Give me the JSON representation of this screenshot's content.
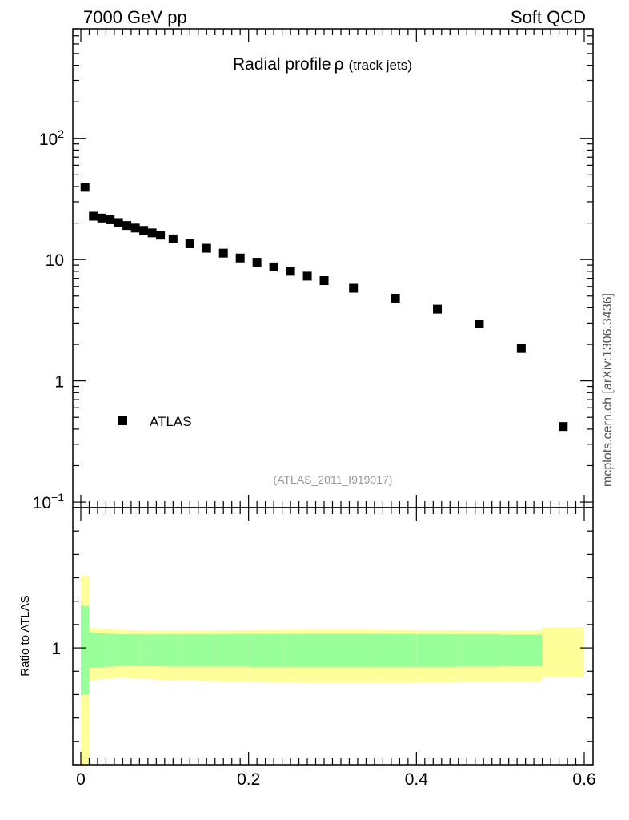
{
  "header": {
    "left": "7000 GeV pp",
    "right": "Soft QCD"
  },
  "side_label": "mcplots.cern.ch [arXiv:1306.3436]",
  "chart_data": [
    {
      "type": "scatter",
      "title_main": "Radial profile",
      "title_symbol": "ρ",
      "title_suffix": "(track jets)",
      "watermark": "(ATLAS_2011_I919017)",
      "yscale": "log",
      "ylim": [
        0.09,
        800
      ],
      "xlim": [
        -0.015,
        0.6
      ],
      "legend": {
        "label": "ATLAS",
        "placement": "bottom-left"
      },
      "y_ticks": [
        {
          "value": 0.1,
          "base": "10",
          "exp": "−1"
        },
        {
          "value": 1,
          "base": "1",
          "exp": ""
        },
        {
          "value": 10,
          "base": "10",
          "exp": ""
        },
        {
          "value": 100,
          "base": "10",
          "exp": "2"
        }
      ],
      "series": [
        {
          "name": "ATLAS",
          "color": "#000000",
          "x": [
            0.005,
            0.015,
            0.025,
            0.035,
            0.045,
            0.055,
            0.065,
            0.075,
            0.085,
            0.095,
            0.11,
            0.13,
            0.15,
            0.17,
            0.19,
            0.21,
            0.23,
            0.25,
            0.27,
            0.29,
            0.325,
            0.375,
            0.425,
            0.475,
            0.525,
            0.575
          ],
          "y": [
            39.5,
            22.8,
            22.0,
            21.3,
            20.2,
            19.1,
            18.2,
            17.4,
            16.6,
            15.9,
            14.8,
            13.5,
            12.4,
            11.3,
            10.3,
            9.5,
            8.7,
            8.0,
            7.3,
            6.7,
            5.8,
            4.8,
            3.9,
            2.95,
            1.85,
            0.42
          ]
        }
      ]
    },
    {
      "type": "area",
      "ylabel": "Ratio to ATLAS",
      "ylim": [
        0.5,
        1.6
      ],
      "y_ticks": [
        {
          "value": 1,
          "label": "1"
        }
      ],
      "x_ticks": [
        {
          "value": 0,
          "label": "0"
        },
        {
          "value": 0.2,
          "label": "0.2"
        },
        {
          "value": 0.4,
          "label": "0.4"
        },
        {
          "value": 0.6,
          "label": "0.6"
        }
      ],
      "band_colors": {
        "inner": "#99ff99",
        "outer": "#ffff99"
      },
      "bins": [
        {
          "lo": 0.0,
          "hi": 0.01,
          "inner": [
            0.8,
            1.18
          ],
          "outer": [
            0.5,
            1.31
          ]
        },
        {
          "lo": 0.01,
          "hi": 0.02,
          "inner": [
            0.915,
            1.065
          ],
          "outer": [
            0.86,
            1.085
          ]
        },
        {
          "lo": 0.02,
          "hi": 0.03,
          "inner": [
            0.918,
            1.062
          ],
          "outer": [
            0.866,
            1.082
          ]
        },
        {
          "lo": 0.03,
          "hi": 0.04,
          "inner": [
            0.92,
            1.06
          ],
          "outer": [
            0.87,
            1.08
          ]
        },
        {
          "lo": 0.04,
          "hi": 0.05,
          "inner": [
            0.921,
            1.059
          ],
          "outer": [
            0.872,
            1.078
          ]
        },
        {
          "lo": 0.05,
          "hi": 0.06,
          "inner": [
            0.922,
            1.058
          ],
          "outer": [
            0.872,
            1.076
          ]
        },
        {
          "lo": 0.06,
          "hi": 0.07,
          "inner": [
            0.922,
            1.058
          ],
          "outer": [
            0.87,
            1.076
          ]
        },
        {
          "lo": 0.07,
          "hi": 0.08,
          "inner": [
            0.922,
            1.058
          ],
          "outer": [
            0.868,
            1.075
          ]
        },
        {
          "lo": 0.08,
          "hi": 0.09,
          "inner": [
            0.922,
            1.058
          ],
          "outer": [
            0.866,
            1.075
          ]
        },
        {
          "lo": 0.09,
          "hi": 0.1,
          "inner": [
            0.921,
            1.058
          ],
          "outer": [
            0.864,
            1.074
          ]
        },
        {
          "lo": 0.1,
          "hi": 0.12,
          "inner": [
            0.92,
            1.058
          ],
          "outer": [
            0.862,
            1.074
          ]
        },
        {
          "lo": 0.12,
          "hi": 0.14,
          "inner": [
            0.92,
            1.058
          ],
          "outer": [
            0.86,
            1.074
          ]
        },
        {
          "lo": 0.14,
          "hi": 0.16,
          "inner": [
            0.92,
            1.058
          ],
          "outer": [
            0.858,
            1.074
          ]
        },
        {
          "lo": 0.16,
          "hi": 0.18,
          "inner": [
            0.92,
            1.059
          ],
          "outer": [
            0.856,
            1.075
          ]
        },
        {
          "lo": 0.18,
          "hi": 0.2,
          "inner": [
            0.92,
            1.06
          ],
          "outer": [
            0.854,
            1.076
          ]
        },
        {
          "lo": 0.2,
          "hi": 0.22,
          "inner": [
            0.919,
            1.06
          ],
          "outer": [
            0.853,
            1.077
          ]
        },
        {
          "lo": 0.22,
          "hi": 0.24,
          "inner": [
            0.919,
            1.06
          ],
          "outer": [
            0.852,
            1.077
          ]
        },
        {
          "lo": 0.24,
          "hi": 0.26,
          "inner": [
            0.919,
            1.06
          ],
          "outer": [
            0.852,
            1.078
          ]
        },
        {
          "lo": 0.26,
          "hi": 0.28,
          "inner": [
            0.919,
            1.06
          ],
          "outer": [
            0.851,
            1.078
          ]
        },
        {
          "lo": 0.28,
          "hi": 0.3,
          "inner": [
            0.919,
            1.06
          ],
          "outer": [
            0.851,
            1.078
          ]
        },
        {
          "lo": 0.3,
          "hi": 0.35,
          "inner": [
            0.919,
            1.06
          ],
          "outer": [
            0.851,
            1.078
          ]
        },
        {
          "lo": 0.35,
          "hi": 0.4,
          "inner": [
            0.919,
            1.06
          ],
          "outer": [
            0.851,
            1.077
          ]
        },
        {
          "lo": 0.4,
          "hi": 0.45,
          "inner": [
            0.919,
            1.059
          ],
          "outer": [
            0.852,
            1.076
          ]
        },
        {
          "lo": 0.45,
          "hi": 0.5,
          "inner": [
            0.92,
            1.058
          ],
          "outer": [
            0.853,
            1.075
          ]
        },
        {
          "lo": 0.5,
          "hi": 0.55,
          "inner": [
            0.921,
            1.057
          ],
          "outer": [
            0.856,
            1.074
          ]
        },
        {
          "lo": 0.55,
          "hi": 0.6,
          "inner": null,
          "outer": [
            0.877,
            1.089
          ]
        }
      ]
    }
  ]
}
